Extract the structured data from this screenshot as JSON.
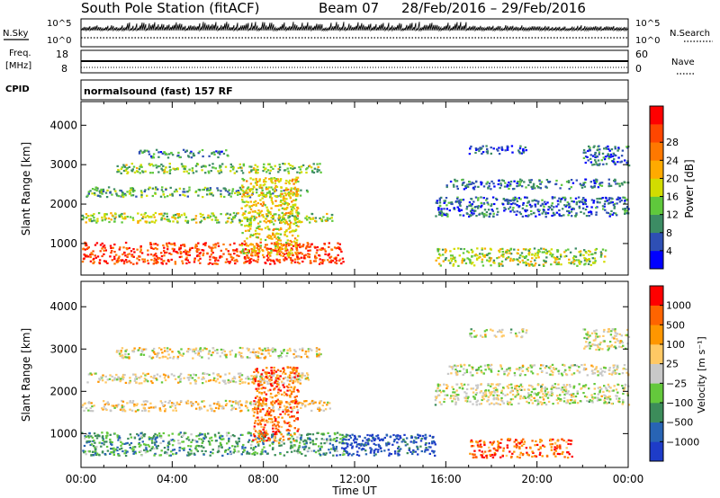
{
  "header": {
    "station": "South Pole Station (fitACF)",
    "beam": "Beam 07",
    "date_range": "28/Feb/2016 – 29/Feb/2016"
  },
  "top_panels": {
    "nsky_label": "N.Sky",
    "nsky_ticks": [
      "10^5",
      "10^0"
    ],
    "nsearch_label": "N.Search",
    "nsearch_ticks": [
      "10^5",
      "10^0"
    ],
    "freq_label_line1": "Freq.",
    "freq_label_line2": "[MHz]",
    "freq_ticks": [
      "18",
      "8"
    ],
    "nave_label": "Nave",
    "nave_ticks": [
      "60",
      "0"
    ],
    "cpid_label": "CPID",
    "cpid_text": "normalsound (fast) 157 RF"
  },
  "chart_data": [
    {
      "type": "heatmap",
      "panel": "power",
      "ylabel": "Slant Range [km]",
      "xlabel": "",
      "yticks": [
        1000,
        2000,
        3000,
        4000
      ],
      "ylim": [
        200,
        4600
      ],
      "xlim_hours": [
        0,
        24
      ],
      "colorbar": {
        "label": "Power [dB]",
        "ticks": [
          "4",
          "8",
          "12",
          "16",
          "20",
          "24",
          "28"
        ],
        "colors": [
          "#0000ff",
          "#2e4fb4",
          "#3c8c64",
          "#5fc83c",
          "#d2dc00",
          "#ffaa00",
          "#ff7800",
          "#ff4600",
          "#ff0000"
        ]
      },
      "echo_bands": [
        {
          "t0": 0.0,
          "t1": 11.5,
          "r0": 500,
          "r1": 1050,
          "val": 0.85
        },
        {
          "t0": 0.0,
          "t1": 11.0,
          "r0": 1550,
          "r1": 1800,
          "val": 0.45
        },
        {
          "t0": 0.2,
          "t1": 10.0,
          "r0": 2200,
          "r1": 2450,
          "val": 0.35
        },
        {
          "t0": 1.5,
          "t1": 10.5,
          "r0": 2800,
          "r1": 3050,
          "val": 0.4
        },
        {
          "t0": 2.5,
          "t1": 6.5,
          "r0": 3200,
          "r1": 3400,
          "val": 0.25
        },
        {
          "t0": 7.0,
          "t1": 9.5,
          "r0": 700,
          "r1": 2700,
          "val": 0.55
        },
        {
          "t0": 15.5,
          "t1": 24.0,
          "r0": 1700,
          "r1": 2200,
          "val": 0.2
        },
        {
          "t0": 16.0,
          "t1": 24.0,
          "r0": 2400,
          "r1": 2650,
          "val": 0.22
        },
        {
          "t0": 17.0,
          "t1": 19.5,
          "r0": 3300,
          "r1": 3500,
          "val": 0.15
        },
        {
          "t0": 22.0,
          "t1": 24.0,
          "r0": 3000,
          "r1": 3500,
          "val": 0.2
        },
        {
          "t0": 15.5,
          "t1": 23.0,
          "r0": 450,
          "r1": 900,
          "val": 0.45
        }
      ]
    },
    {
      "type": "heatmap",
      "panel": "velocity",
      "ylabel": "Slant Range [km]",
      "xlabel": "Time UT",
      "yticks": [
        1000,
        2000,
        3000,
        4000
      ],
      "ylim": [
        200,
        4600
      ],
      "xlim_hours": [
        0,
        24
      ],
      "xticks": [
        "00:00",
        "04:00",
        "08:00",
        "12:00",
        "16:00",
        "20:00",
        "00:00"
      ],
      "colorbar": {
        "label": "Velocity [m s⁻¹]",
        "ticks": [
          "1000",
          "500",
          "100",
          "25",
          "−25",
          "−100",
          "−500",
          "−1000"
        ],
        "colors": [
          "#1e3cc8",
          "#2864b4",
          "#3c8c5a",
          "#64c83c",
          "#c8c8c8",
          "#ffc864",
          "#ff9600",
          "#ff6400",
          "#ff0000"
        ]
      },
      "echo_bands": [
        {
          "t0": 0.0,
          "t1": 11.5,
          "r0": 500,
          "r1": 1050,
          "val": 0.3
        },
        {
          "t0": 11.0,
          "t1": 15.5,
          "r0": 500,
          "r1": 1000,
          "val": 0.1
        },
        {
          "t0": 0.0,
          "t1": 11.0,
          "r0": 1550,
          "r1": 1800,
          "val": 0.6
        },
        {
          "t0": 0.2,
          "t1": 10.0,
          "r0": 2200,
          "r1": 2450,
          "val": 0.55
        },
        {
          "t0": 1.5,
          "t1": 10.5,
          "r0": 2800,
          "r1": 3050,
          "val": 0.55
        },
        {
          "t0": 7.5,
          "t1": 9.5,
          "r0": 800,
          "r1": 2600,
          "val": 0.8
        },
        {
          "t0": 15.5,
          "t1": 24.0,
          "r0": 1700,
          "r1": 2200,
          "val": 0.5
        },
        {
          "t0": 16.0,
          "t1": 24.0,
          "r0": 2400,
          "r1": 2650,
          "val": 0.5
        },
        {
          "t0": 17.0,
          "t1": 19.5,
          "r0": 3300,
          "r1": 3500,
          "val": 0.5
        },
        {
          "t0": 22.0,
          "t1": 24.0,
          "r0": 3000,
          "r1": 3500,
          "val": 0.5
        },
        {
          "t0": 17.0,
          "t1": 21.5,
          "r0": 450,
          "r1": 900,
          "val": 0.82
        }
      ]
    }
  ]
}
